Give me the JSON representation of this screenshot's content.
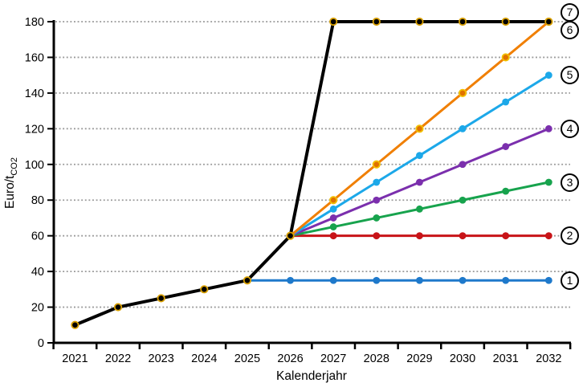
{
  "chart": {
    "x_axis": {
      "label": "Kalenderjahr",
      "categories": [
        "2021",
        "2022",
        "2023",
        "2024",
        "2025",
        "2026",
        "2027",
        "2028",
        "2029",
        "2030",
        "2031",
        "2032"
      ]
    },
    "y_axis": {
      "label_main": "Euro/t",
      "label_sub": "CO2",
      "min": 0,
      "max": 180,
      "step": 20,
      "tick_labels": [
        "0",
        "20",
        "40",
        "60",
        "80",
        "100",
        "120",
        "140",
        "160",
        "180"
      ]
    },
    "grid_color": "#999999",
    "axis_color": "#000000"
  },
  "chart_data": {
    "type": "line",
    "title": "",
    "xlabel": "Kalenderjahr",
    "ylabel": "Euro/t_CO2",
    "x_range": [
      2021,
      2032
    ],
    "ylim": [
      0,
      180
    ],
    "grid": "dotted horizontal",
    "legend_position": "circled numbers at right edge",
    "series": [
      {
        "label": "1",
        "color": "#1E79CB",
        "points": [
          [
            2025,
            35
          ],
          [
            2026,
            35
          ],
          [
            2027,
            35
          ],
          [
            2028,
            35
          ],
          [
            2029,
            35
          ],
          [
            2030,
            35
          ],
          [
            2031,
            35
          ],
          [
            2032,
            35
          ]
        ]
      },
      {
        "label": "2",
        "color": "#C81418",
        "points": [
          [
            2026,
            60
          ],
          [
            2027,
            60
          ],
          [
            2028,
            60
          ],
          [
            2029,
            60
          ],
          [
            2030,
            60
          ],
          [
            2031,
            60
          ],
          [
            2032,
            60
          ]
        ]
      },
      {
        "label": "3",
        "color": "#17A34D",
        "points": [
          [
            2026,
            60
          ],
          [
            2027,
            65
          ],
          [
            2028,
            70
          ],
          [
            2029,
            75
          ],
          [
            2030,
            80
          ],
          [
            2031,
            85
          ],
          [
            2032,
            90
          ]
        ]
      },
      {
        "label": "4",
        "color": "#7B2FAD",
        "points": [
          [
            2026,
            60
          ],
          [
            2027,
            70
          ],
          [
            2028,
            80
          ],
          [
            2029,
            90
          ],
          [
            2030,
            100
          ],
          [
            2031,
            110
          ],
          [
            2032,
            120
          ]
        ]
      },
      {
        "label": "5",
        "color": "#1CA8E9",
        "points": [
          [
            2026,
            60
          ],
          [
            2027,
            75
          ],
          [
            2028,
            90
          ],
          [
            2029,
            105
          ],
          [
            2030,
            120
          ],
          [
            2031,
            135
          ],
          [
            2032,
            150
          ]
        ]
      },
      {
        "label": "6",
        "color": "#F07F02",
        "marker_fill": "#E07200",
        "marker_stroke": "#F2C100",
        "points": [
          [
            2026,
            60
          ],
          [
            2027,
            80
          ],
          [
            2028,
            100
          ],
          [
            2029,
            120
          ],
          [
            2030,
            140
          ],
          [
            2031,
            160
          ],
          [
            2032,
            180
          ]
        ]
      },
      {
        "label": "7",
        "color": "#000000",
        "marker_stroke": "#D9A000",
        "line_width": 4,
        "points": [
          [
            2021,
            10
          ],
          [
            2022,
            20
          ],
          [
            2023,
            25
          ],
          [
            2024,
            30
          ],
          [
            2025,
            35
          ],
          [
            2026,
            60
          ],
          [
            2027,
            180
          ],
          [
            2028,
            180
          ],
          [
            2029,
            180
          ],
          [
            2030,
            180
          ],
          [
            2031,
            180
          ],
          [
            2032,
            180
          ]
        ]
      }
    ]
  }
}
